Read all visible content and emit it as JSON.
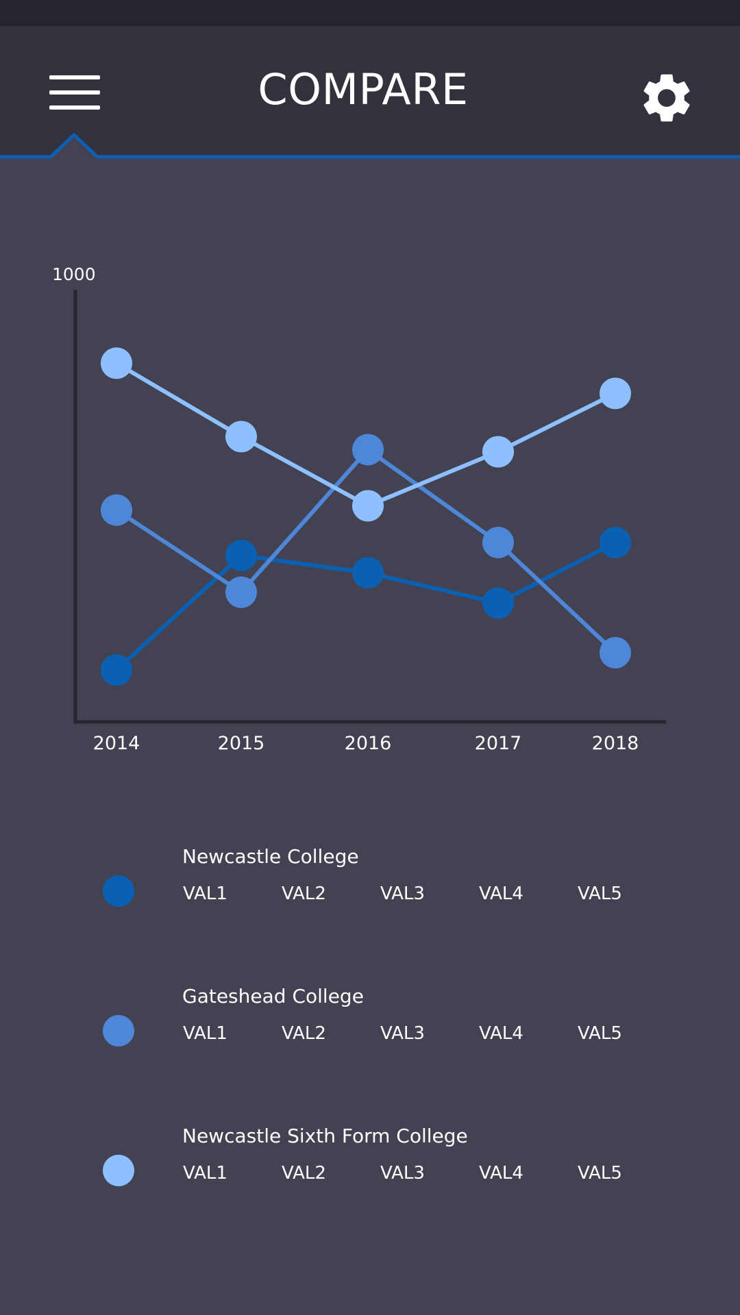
{
  "header": {
    "title": "COMPARE",
    "menu_icon": "hamburger-menu-icon",
    "settings_icon": "gear-icon"
  },
  "colors": {
    "background": "#434252",
    "header_background": "#32323d",
    "accent": "#0e5fb4",
    "newcastle_college": "#0a61b3",
    "gateshead_college": "#4f87d8",
    "newcastle_sixth_form_college": "#8ec0ff"
  },
  "chart_data": {
    "type": "line",
    "x": [
      "2014",
      "2015",
      "2016",
      "2017",
      "2018"
    ],
    "ylim": [
      0,
      1000
    ],
    "ymax_label": "1000",
    "grid": false,
    "series": [
      {
        "name": "Newcastle College",
        "color": "#0a61b3",
        "values": [
          120,
          385,
          345,
          275,
          415
        ]
      },
      {
        "name": "Gateshead College",
        "color": "#4f87d8",
        "values": [
          490,
          300,
          630,
          415,
          160
        ]
      },
      {
        "name": "Newcastle Sixth Form College",
        "color": "#8ec0ff",
        "values": [
          830,
          660,
          500,
          625,
          760
        ]
      }
    ]
  },
  "legend": [
    {
      "name": "Newcastle College",
      "color": "#0a61b3",
      "values": [
        "VAL1",
        "VAL2",
        "VAL3",
        "VAL4",
        "VAL5"
      ]
    },
    {
      "name": "Gateshead College",
      "color": "#4f87d8",
      "values": [
        "VAL1",
        "VAL2",
        "VAL3",
        "VAL4",
        "VAL5"
      ]
    },
    {
      "name": "Newcastle Sixth Form College",
      "color": "#8ec0ff",
      "values": [
        "VAL1",
        "VAL2",
        "VAL3",
        "VAL4",
        "VAL5"
      ]
    }
  ]
}
